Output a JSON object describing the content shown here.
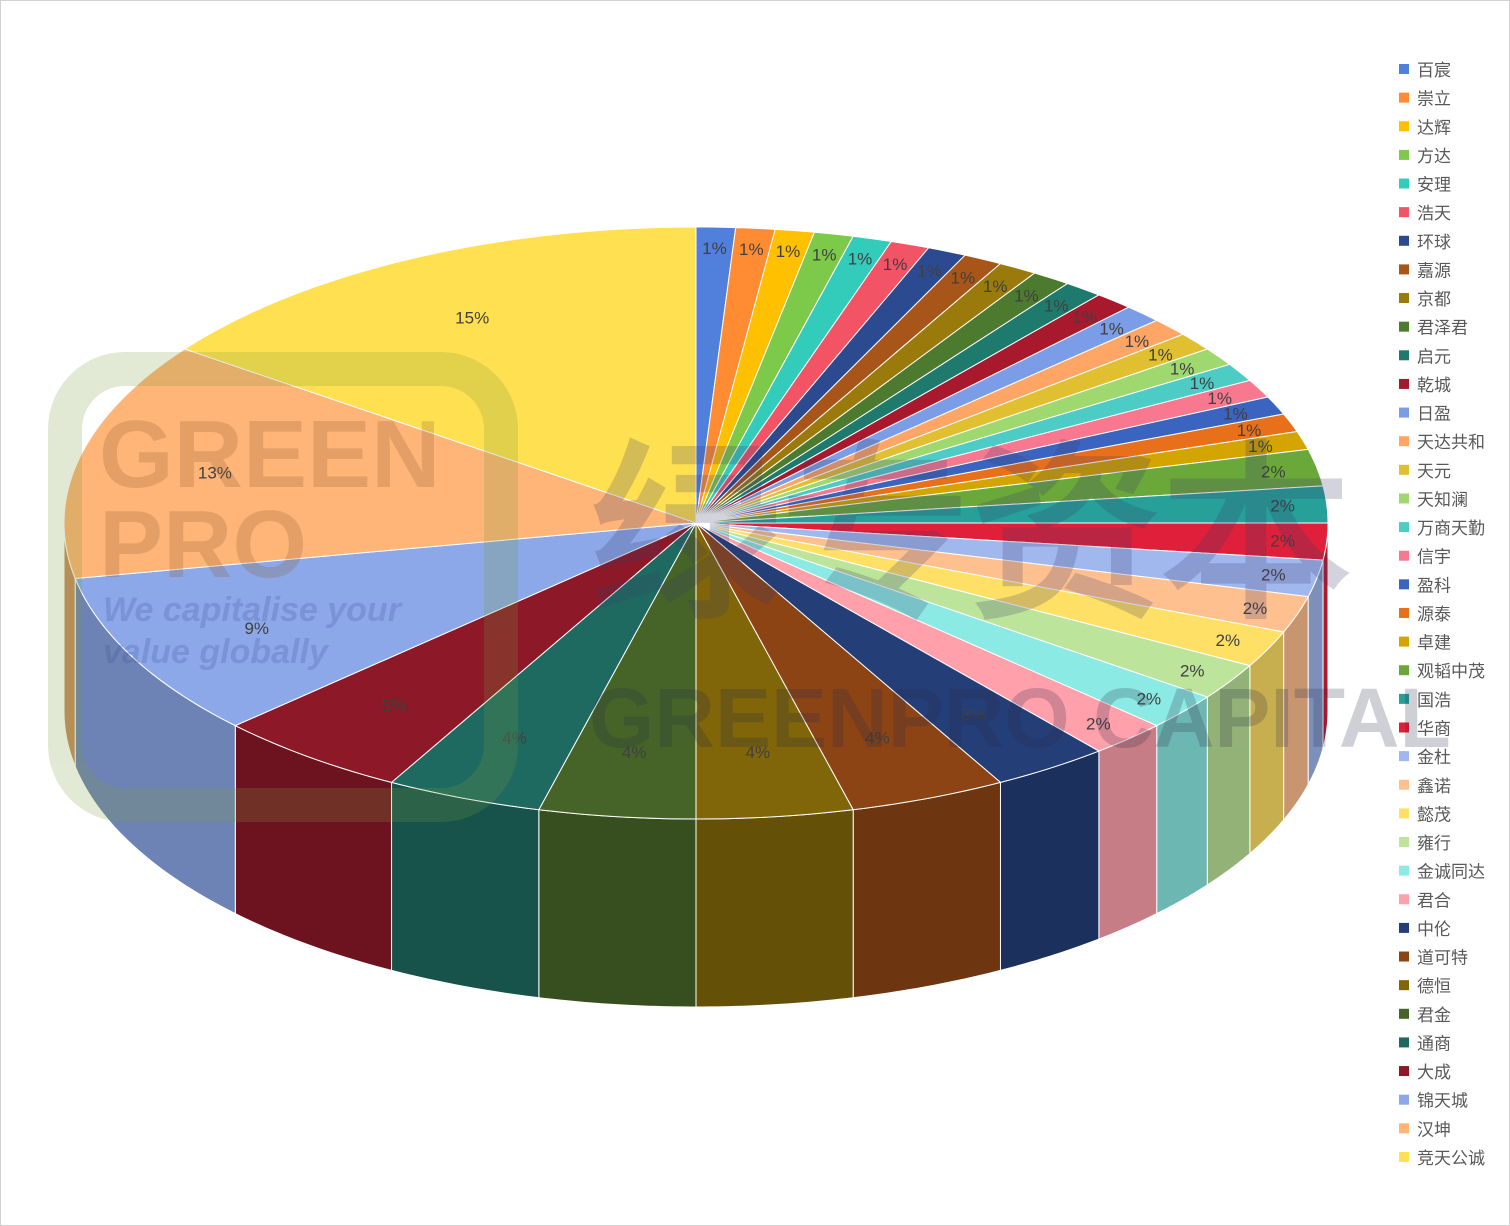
{
  "chart_data": {
    "type": "pie",
    "style": "3d",
    "title": "",
    "legend_position": "right",
    "label_format": "percent",
    "slices": [
      {
        "name": "百宸",
        "value": 1,
        "color": "#5080DC"
      },
      {
        "name": "崇立",
        "value": 1,
        "color": "#FF8C33"
      },
      {
        "name": "达辉",
        "value": 1,
        "color": "#FFC000"
      },
      {
        "name": "方达",
        "value": 1,
        "color": "#7DC94A"
      },
      {
        "name": "安理",
        "value": 1,
        "color": "#33CCBB"
      },
      {
        "name": "浩天",
        "value": 1,
        "color": "#F25365"
      },
      {
        "name": "环球",
        "value": 1,
        "color": "#2C4A8F"
      },
      {
        "name": "嘉源",
        "value": 1,
        "color": "#A85519"
      },
      {
        "name": "京都",
        "value": 1,
        "color": "#9A7A0A"
      },
      {
        "name": "君泽君",
        "value": 1,
        "color": "#4C7A2E"
      },
      {
        "name": "启元",
        "value": 1,
        "color": "#1F7A6E"
      },
      {
        "name": "乾城",
        "value": 1,
        "color": "#A8192E"
      },
      {
        "name": "日盈",
        "value": 1,
        "color": "#7B9CE6"
      },
      {
        "name": "天达共和",
        "value": 1,
        "color": "#FFA666"
      },
      {
        "name": "天元",
        "value": 1,
        "color": "#E0C030"
      },
      {
        "name": "天知澜",
        "value": 1,
        "color": "#A0D870"
      },
      {
        "name": "万商天勤",
        "value": 1,
        "color": "#4CCCC4"
      },
      {
        "name": "信宇",
        "value": 1,
        "color": "#F87890"
      },
      {
        "name": "盈科",
        "value": 1,
        "color": "#3A64C0"
      },
      {
        "name": "源泰",
        "value": 1,
        "color": "#E8701A"
      },
      {
        "name": "卓建",
        "value": 1,
        "color": "#D4A500"
      },
      {
        "name": "观韬中茂",
        "value": 2,
        "color": "#6AA83A"
      },
      {
        "name": "国浩",
        "value": 2,
        "color": "#26A098"
      },
      {
        "name": "华商",
        "value": 2,
        "color": "#E0203A"
      },
      {
        "name": "金杜",
        "value": 2,
        "color": "#A0B8EE"
      },
      {
        "name": "鑫诺",
        "value": 2,
        "color": "#FFC090"
      },
      {
        "name": "懿茂",
        "value": 2,
        "color": "#FFE066"
      },
      {
        "name": "雍行",
        "value": 2,
        "color": "#BCE49A"
      },
      {
        "name": "金诚同达",
        "value": 2,
        "color": "#8CEAE4"
      },
      {
        "name": "君合",
        "value": 2,
        "color": "#FFA0AA"
      },
      {
        "name": "中伦",
        "value": 3,
        "color": "#243E78"
      },
      {
        "name": "道可特",
        "value": 4,
        "color": "#8C4414"
      },
      {
        "name": "德恒",
        "value": 4,
        "color": "#806608"
      },
      {
        "name": "君金",
        "value": 4,
        "color": "#466428"
      },
      {
        "name": "通商",
        "value": 4,
        "color": "#1E6A60"
      },
      {
        "name": "大成",
        "value": 5,
        "color": "#8C1828"
      },
      {
        "name": "锦天城",
        "value": 9,
        "color": "#8CA8E8"
      },
      {
        "name": "汉坤",
        "value": 13,
        "color": "#FFB478"
      },
      {
        "name": "竞天公诚",
        "value": 15,
        "color": "#FFE050"
      }
    ]
  },
  "watermark": {
    "logo_line1": "GREEN",
    "logo_line2": "PRO",
    "tagline1": "We capitalise your",
    "tagline2": "value globally",
    "chinese": "绿专资本",
    "english": "GREENPRO CAPITAL"
  }
}
